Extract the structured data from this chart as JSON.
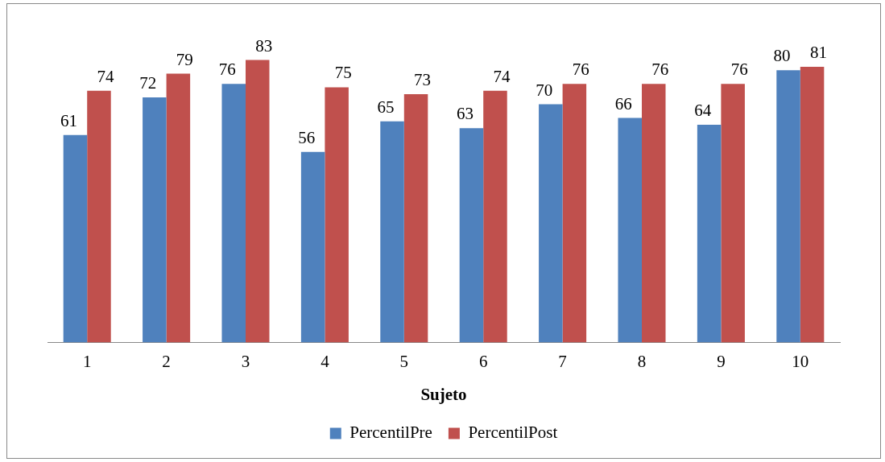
{
  "chart_data": {
    "type": "bar",
    "xlabel": "Sujeto",
    "categories": [
      "1",
      "2",
      "3",
      "4",
      "5",
      "6",
      "7",
      "8",
      "9",
      "10"
    ],
    "series": [
      {
        "name": "PercentilPre",
        "color": "#4f81bd",
        "values": [
          61,
          72,
          76,
          56,
          65,
          63,
          70,
          66,
          64,
          80
        ]
      },
      {
        "name": "PercentilPost",
        "color": "#c0504d",
        "values": [
          74,
          79,
          83,
          75,
          73,
          74,
          76,
          76,
          76,
          81
        ]
      }
    ],
    "data_labels": true,
    "legend": "bottom",
    "grid": false
  }
}
